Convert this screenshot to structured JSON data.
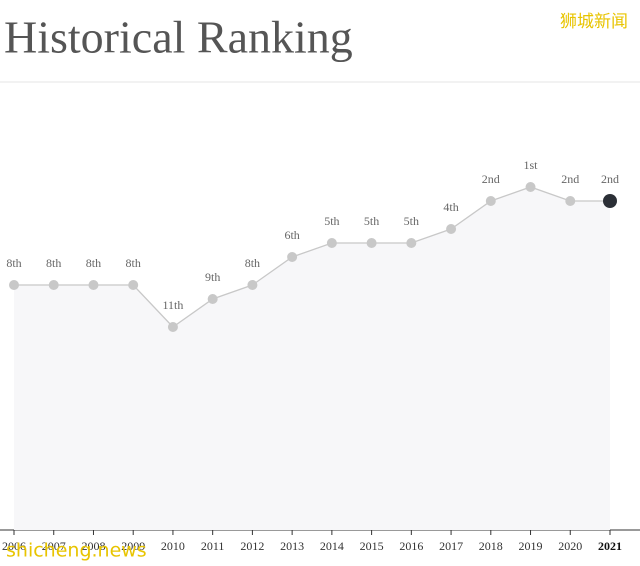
{
  "chart_data": {
    "type": "line",
    "title": "Historical Ranking",
    "categories": [
      "2006",
      "2007",
      "2008",
      "2009",
      "2010",
      "2011",
      "2012",
      "2013",
      "2014",
      "2015",
      "2016",
      "2017",
      "2018",
      "2019",
      "2020",
      "2021"
    ],
    "series": [
      {
        "values": [
          8,
          8,
          8,
          8,
          11,
          9,
          8,
          6,
          5,
          5,
          5,
          4,
          2,
          1,
          2,
          2
        ],
        "value_labels": [
          "8th",
          "8th",
          "8th",
          "8th",
          "11th",
          "9th",
          "8th",
          "6th",
          "5th",
          "5th",
          "5th",
          "4th",
          "2nd",
          "1st",
          "2nd",
          "2nd"
        ],
        "color": "#c8c8c8",
        "highlight_color": "#2b2f36"
      }
    ],
    "ylim": [
      1,
      11
    ],
    "y_inverted": true,
    "area": true,
    "highlight_last": true
  },
  "watermarks": [
    "狮城新闻",
    "shicheng.news"
  ]
}
